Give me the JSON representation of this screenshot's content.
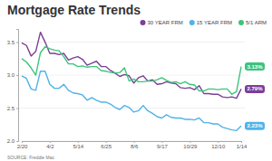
{
  "chart_data": {
    "type": "line",
    "title": "Mortgage Rate Trends",
    "source": "SOURCE: Freddie Mac",
    "categories": [
      "2/20",
      null,
      null,
      null,
      null,
      null,
      "4/2",
      null,
      null,
      null,
      null,
      null,
      "5/14",
      null,
      null,
      null,
      null,
      null,
      "6/25",
      null,
      null,
      null,
      null,
      null,
      "8/6",
      null,
      null,
      null,
      null,
      null,
      "9/17",
      null,
      null,
      null,
      null,
      null,
      "10/29",
      null,
      null,
      null,
      null,
      null,
      "12/10",
      null,
      null,
      null,
      null,
      "1/14"
    ],
    "series": [
      {
        "name": "30 YEAR FRM",
        "color": "#7b3f98",
        "data_labels": true,
        "values": [
          3.49,
          3.45,
          3.29,
          3.36,
          3.65,
          3.5,
          3.33,
          3.33,
          3.31,
          3.33,
          3.23,
          3.26,
          3.28,
          3.24,
          3.15,
          3.18,
          3.21,
          3.13,
          3.13,
          3.07,
          3.03,
          2.98,
          3.01,
          2.99,
          2.88,
          2.96,
          2.99,
          2.91,
          2.93,
          2.86,
          2.87,
          2.9,
          2.88,
          2.87,
          2.81,
          2.8,
          2.81,
          2.78,
          2.84,
          2.72,
          2.72,
          2.71,
          2.71,
          2.67,
          2.66,
          2.67,
          2.65,
          2.79
        ],
        "value_labels": [
          null,
          null,
          null,
          null,
          null,
          null,
          null,
          null,
          null,
          null,
          null,
          null,
          null,
          null,
          null,
          null,
          null,
          null,
          null,
          null,
          null,
          null,
          null,
          null,
          null,
          null,
          null,
          null,
          null,
          null,
          null,
          null,
          null,
          null,
          null,
          null,
          null,
          null,
          null,
          null,
          null,
          null,
          null,
          null,
          null,
          null,
          null,
          "2.79%"
        ]
      },
      {
        "name": "15 YEAR FRM",
        "color": "#4fb3e8",
        "data_labels": true,
        "values": [
          2.99,
          2.95,
          2.79,
          2.77,
          3.06,
          3.06,
          2.86,
          2.8,
          2.8,
          2.86,
          2.77,
          2.73,
          2.72,
          2.7,
          2.62,
          2.66,
          2.62,
          2.59,
          2.59,
          2.56,
          2.51,
          2.48,
          2.54,
          2.51,
          2.44,
          2.46,
          2.54,
          2.46,
          2.42,
          2.37,
          2.35,
          2.4,
          2.36,
          2.35,
          2.35,
          2.33,
          2.33,
          2.32,
          2.35,
          2.28,
          2.28,
          2.26,
          2.26,
          2.21,
          2.19,
          2.17,
          2.16,
          2.23
        ],
        "value_labels": [
          null,
          null,
          null,
          null,
          null,
          null,
          null,
          null,
          null,
          null,
          null,
          null,
          null,
          null,
          null,
          null,
          null,
          null,
          null,
          null,
          null,
          null,
          null,
          null,
          null,
          null,
          null,
          null,
          null,
          null,
          null,
          null,
          null,
          null,
          null,
          null,
          null,
          null,
          null,
          null,
          null,
          null,
          null,
          null,
          null,
          null,
          null,
          "2.23%"
        ]
      },
      {
        "name": "5/1 ARM",
        "color": "#3cc47c",
        "data_labels": true,
        "values": [
          3.25,
          3.2,
          3.11,
          3.0,
          3.34,
          3.43,
          3.4,
          3.38,
          3.37,
          3.28,
          3.17,
          3.17,
          3.13,
          3.14,
          3.12,
          3.13,
          3.13,
          3.07,
          3.06,
          3.04,
          3.03,
          3.04,
          3.11,
          2.91,
          2.94,
          2.9,
          2.9,
          2.91,
          2.91,
          2.93,
          2.96,
          2.92,
          2.89,
          2.9,
          2.87,
          2.9,
          2.86,
          2.85,
          2.76,
          2.76,
          2.79,
          2.79,
          2.78,
          2.79,
          2.79,
          2.71,
          2.75,
          3.13
        ],
        "value_labels": [
          null,
          null,
          null,
          null,
          null,
          null,
          null,
          null,
          null,
          null,
          null,
          null,
          null,
          null,
          null,
          null,
          null,
          null,
          null,
          null,
          null,
          null,
          null,
          null,
          null,
          null,
          null,
          null,
          null,
          null,
          null,
          null,
          null,
          null,
          null,
          null,
          null,
          null,
          null,
          null,
          null,
          null,
          null,
          null,
          null,
          null,
          null,
          "3.13%"
        ]
      }
    ],
    "ylim": [
      2.0,
      3.7
    ],
    "yticks": [
      {
        "value": 2.0,
        "label": "2.0"
      },
      {
        "value": 2.5,
        "label": "2.5"
      },
      {
        "value": 3.0,
        "label": "3.0"
      },
      {
        "value": 3.5,
        "label": "3.5"
      }
    ],
    "grid": true,
    "legend": "top-right"
  }
}
